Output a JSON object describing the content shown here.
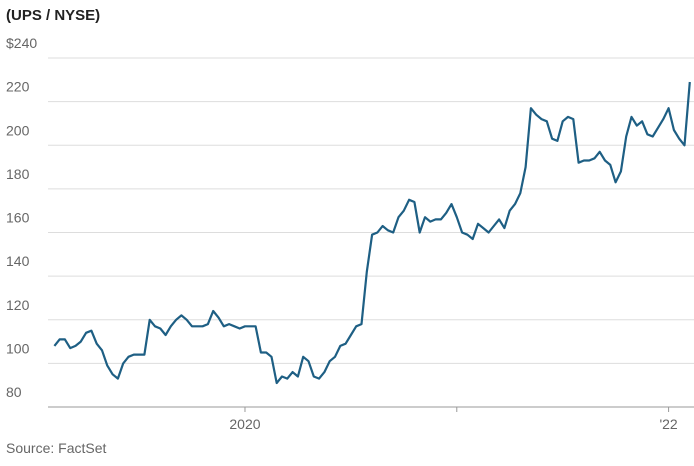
{
  "chart_data": {
    "type": "line",
    "title": "(UPS / NYSE)",
    "source": "Source: FactSet",
    "x": [
      2019.1,
      2019.125,
      2019.15,
      2019.175,
      2019.2,
      2019.225,
      2019.25,
      2019.275,
      2019.3,
      2019.325,
      2019.35,
      2019.375,
      2019.4,
      2019.425,
      2019.45,
      2019.475,
      2019.5,
      2019.525,
      2019.55,
      2019.575,
      2019.6,
      2019.625,
      2019.65,
      2019.675,
      2019.7,
      2019.725,
      2019.75,
      2019.775,
      2019.8,
      2019.825,
      2019.85,
      2019.875,
      2019.9,
      2019.925,
      2019.95,
      2019.975,
      2020.0,
      2020.025,
      2020.05,
      2020.075,
      2020.1,
      2020.125,
      2020.15,
      2020.175,
      2020.2,
      2020.225,
      2020.25,
      2020.275,
      2020.3,
      2020.325,
      2020.35,
      2020.375,
      2020.4,
      2020.425,
      2020.45,
      2020.475,
      2020.5,
      2020.525,
      2020.55,
      2020.575,
      2020.6,
      2020.625,
      2020.65,
      2020.675,
      2020.7,
      2020.725,
      2020.75,
      2020.775,
      2020.8,
      2020.825,
      2020.85,
      2020.875,
      2020.9,
      2020.925,
      2020.95,
      2020.975,
      2021.0,
      2021.025,
      2021.05,
      2021.075,
      2021.1,
      2021.125,
      2021.15,
      2021.175,
      2021.2,
      2021.225,
      2021.25,
      2021.275,
      2021.3,
      2021.325,
      2021.35,
      2021.375,
      2021.4,
      2021.425,
      2021.45,
      2021.475,
      2021.5,
      2021.525,
      2021.55,
      2021.575,
      2021.6,
      2021.625,
      2021.65,
      2021.675,
      2021.7,
      2021.725,
      2021.75,
      2021.775,
      2021.8,
      2021.825,
      2021.85,
      2021.875,
      2021.9,
      2021.925,
      2021.95,
      2021.975,
      2022.0,
      2022.025,
      2022.05,
      2022.075,
      2022.1
    ],
    "series": [
      {
        "color": "#1e5f84",
        "values": [
          108,
          111,
          111,
          107,
          108,
          110,
          114,
          115,
          109,
          106,
          99,
          95,
          93,
          100,
          103,
          104,
          104,
          104,
          120,
          117,
          116,
          113,
          117,
          120,
          122,
          120,
          117,
          117,
          117,
          118,
          124,
          121,
          117,
          118,
          117,
          116,
          117,
          117,
          117,
          105,
          105,
          103,
          91,
          94,
          93,
          96,
          94,
          103,
          101,
          94,
          93,
          96,
          101,
          103,
          108,
          109,
          113,
          117,
          118,
          142,
          159,
          160,
          163,
          161,
          160,
          167,
          170,
          175,
          174,
          160,
          167,
          165,
          166,
          166,
          169,
          173,
          167,
          160,
          159,
          157,
          164,
          162,
          160,
          163,
          166,
          162,
          170,
          173,
          178,
          190,
          217,
          214,
          212,
          211,
          203,
          202,
          211,
          213,
          212,
          192,
          193,
          193,
          194,
          197,
          193,
          191,
          183,
          188,
          204,
          213,
          209,
          211,
          205,
          204,
          208,
          212,
          217,
          207,
          203,
          200,
          229
        ]
      }
    ],
    "xlim": [
      2019.07,
      2022.12
    ],
    "xticks": [
      2020,
      {
        "value": 2021,
        "label": null
      },
      {
        "value": 2022,
        "label": "'22"
      }
    ],
    "ylim": [
      80,
      240
    ],
    "yticks": [
      80,
      100,
      120,
      140,
      160,
      180,
      200,
      220,
      {
        "value": 240,
        "label": "$240"
      }
    ],
    "grid": true
  }
}
